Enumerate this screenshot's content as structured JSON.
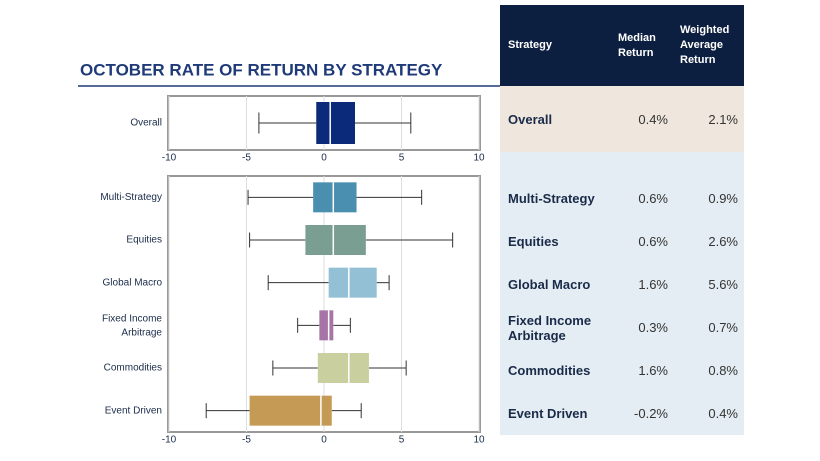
{
  "chart_data": [
    {
      "type": "box",
      "title": "OCTOBER RATE OF RETURN BY STRATEGY",
      "categories": [
        "Overall"
      ],
      "boxes": [
        {
          "min": -4.2,
          "q1": -0.5,
          "median": 0.4,
          "q3": 2.0,
          "max": 5.6,
          "color": "#0b2a7a"
        }
      ],
      "xlim": [
        -10,
        10
      ],
      "xticks": [
        -10,
        -5,
        0,
        5,
        10
      ],
      "grid": true
    },
    {
      "type": "box",
      "categories": [
        "Multi-Strategy",
        "Equities",
        "Global Macro",
        "Fixed Income Arbitrage",
        "Commodities",
        "Event Driven"
      ],
      "boxes": [
        {
          "min": -4.9,
          "q1": -0.7,
          "median": 0.6,
          "q3": 2.1,
          "max": 6.3,
          "color": "#4a8fb0"
        },
        {
          "min": -4.8,
          "q1": -1.2,
          "median": 0.6,
          "q3": 2.7,
          "max": 8.3,
          "color": "#7a9e92"
        },
        {
          "min": -3.6,
          "q1": 0.3,
          "median": 1.6,
          "q3": 3.4,
          "max": 4.2,
          "color": "#93c0d4"
        },
        {
          "min": -1.7,
          "q1": -0.3,
          "median": 0.3,
          "q3": 0.6,
          "max": 1.7,
          "color": "#a675a6"
        },
        {
          "min": -3.3,
          "q1": -0.4,
          "median": 1.6,
          "q3": 2.9,
          "max": 5.3,
          "color": "#c9cf9e"
        },
        {
          "min": -7.6,
          "q1": -4.8,
          "median": -0.2,
          "q3": 0.5,
          "max": 2.4,
          "color": "#c49a55"
        }
      ],
      "xlim": [
        -10,
        10
      ],
      "xticks": [
        -10,
        -5,
        0,
        5,
        10
      ],
      "grid": true
    }
  ],
  "table": {
    "header": [
      "Strategy",
      "Median Return",
      "Weighted Average Return"
    ],
    "rows": [
      [
        "Overall",
        "0.4%",
        "2.1%"
      ],
      [
        "Multi-Strategy",
        "0.6%",
        "0.9%"
      ],
      [
        "Equities",
        "0.6%",
        "2.6%"
      ],
      [
        "Global Macro",
        "1.6%",
        "5.6%"
      ],
      [
        "Fixed Income Arbitrage",
        "0.3%",
        "0.7%"
      ],
      [
        "Commodities",
        "1.6%",
        "0.8%"
      ],
      [
        "Event Driven",
        "-0.2%",
        "0.4%"
      ]
    ]
  }
}
